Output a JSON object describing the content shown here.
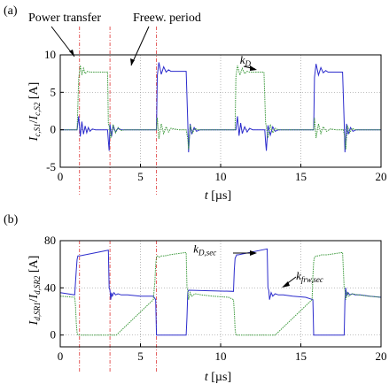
{
  "figure": {
    "annotations": {
      "power_transfer": "Power transfer",
      "freewheel_period": "Freew. period"
    }
  },
  "chart_data": [
    {
      "type": "line",
      "panel_label": "(a)",
      "xlabel": "t [µs]",
      "ylabel": "I_c,S1 / I_c,S2 [A]",
      "xlim": [
        0,
        20
      ],
      "ylim": [
        -5,
        10
      ],
      "x_ticks": [
        "0",
        "5",
        "10",
        "15",
        "20"
      ],
      "y_ticks": [
        "-5",
        "0",
        "5",
        "10"
      ],
      "grid": true,
      "mark_labels": [
        {
          "text": "k",
          "sub": "D",
          "x": 11.2,
          "y": 8.8
        }
      ],
      "vlines": [
        1.2,
        3.1,
        6.0
      ],
      "series": [
        {
          "color": "#2b2bcc",
          "x": [
            0,
            1.05,
            1.15,
            1.25,
            1.35,
            1.45,
            1.55,
            1.65,
            1.75,
            1.85,
            2.0,
            2.2,
            2.4,
            2.6,
            2.8,
            2.95,
            3.0,
            3.05,
            3.1,
            3.2,
            3.3,
            3.45,
            3.6,
            3.8,
            4.0,
            5.9,
            6.0,
            6.05,
            6.15,
            6.3,
            6.45,
            6.6,
            6.75,
            6.9,
            7.05,
            7.3,
            7.6,
            7.85,
            7.95,
            8.0,
            8.1,
            8.2,
            8.35,
            8.5,
            8.7,
            10.8,
            10.95,
            11.05,
            11.15,
            11.25,
            11.35,
            11.5,
            11.65,
            11.8,
            12.0,
            12.3,
            12.6,
            12.75,
            12.8,
            12.85,
            12.95,
            13.1,
            13.25,
            13.4,
            13.6,
            15.7,
            15.8,
            15.85,
            15.95,
            16.1,
            16.25,
            16.4,
            16.55,
            16.7,
            16.85,
            17.1,
            17.4,
            17.6,
            17.7,
            17.75,
            17.85,
            17.95,
            18.1,
            18.25,
            18.45,
            20
          ],
          "values": [
            0,
            0,
            1.8,
            -0.9,
            1.1,
            -0.6,
            0.5,
            -0.4,
            0.3,
            -0.2,
            0.1,
            0,
            0,
            0,
            0,
            0,
            -1.5,
            -2.8,
            0.7,
            -0.9,
            0.5,
            -0.3,
            0.2,
            0,
            0,
            0,
            0,
            7.2,
            9.0,
            7.4,
            8.4,
            7.7,
            8.0,
            7.8,
            7.8,
            7.8,
            7.8,
            7.8,
            1.0,
            -3.0,
            0.8,
            -0.6,
            0.3,
            -0.2,
            0,
            0,
            0,
            1.8,
            -0.8,
            0.9,
            -0.5,
            0.4,
            -0.3,
            0.2,
            0,
            0,
            0,
            0,
            -1.6,
            -2.8,
            0.6,
            -0.7,
            0.4,
            -0.2,
            0,
            0,
            0,
            7.0,
            8.8,
            7.3,
            8.3,
            7.6,
            7.9,
            7.7,
            7.7,
            7.7,
            7.7,
            7.7,
            1.0,
            -3.0,
            0.8,
            -0.6,
            0.3,
            -0.2,
            0,
            0
          ]
        },
        {
          "color": "#3d9a3d",
          "x": [
            0,
            1.05,
            1.15,
            1.25,
            1.35,
            1.45,
            1.55,
            1.7,
            1.85,
            2.0,
            2.2,
            2.5,
            2.8,
            2.95,
            3.0,
            3.05,
            3.15,
            3.3,
            3.45,
            3.6,
            3.8,
            4.0,
            5.9,
            6.0,
            6.05,
            6.15,
            6.3,
            6.45,
            6.6,
            6.75,
            6.9,
            7.1,
            7.4,
            7.85,
            7.95,
            8.0,
            8.1,
            8.25,
            8.4,
            8.6,
            10.8,
            10.9,
            10.95,
            11.05,
            11.2,
            11.35,
            11.5,
            11.65,
            11.8,
            12.0,
            12.3,
            12.7,
            12.8,
            12.85,
            12.95,
            13.1,
            13.25,
            13.4,
            13.6,
            15.7,
            15.8,
            15.85,
            15.95,
            16.1,
            16.25,
            16.4,
            16.6,
            16.85,
            17.2,
            17.65,
            17.75,
            17.8,
            17.9,
            18.05,
            18.2,
            18.4,
            20
          ],
          "values": [
            0,
            0,
            6.8,
            8.6,
            7.3,
            8.2,
            7.5,
            7.8,
            7.7,
            7.7,
            7.7,
            7.7,
            7.7,
            7.7,
            0.8,
            0.5,
            -1.1,
            0.7,
            -0.4,
            0.3,
            -0.1,
            0,
            0,
            0,
            1.6,
            -1.2,
            0.8,
            -0.5,
            0.4,
            -0.3,
            0.2,
            0.1,
            0,
            0,
            -1.2,
            -2.6,
            0.6,
            -0.4,
            0.2,
            0,
            0,
            0,
            7.0,
            8.6,
            7.3,
            8.2,
            7.5,
            7.8,
            7.7,
            7.7,
            7.7,
            7.7,
            1.0,
            0.4,
            -1.1,
            0.7,
            -0.4,
            0.2,
            0,
            0,
            0,
            1.6,
            -1.1,
            0.8,
            -0.5,
            0.4,
            -0.2,
            0.1,
            0,
            0,
            -1.2,
            -2.6,
            0.6,
            -0.4,
            0.2,
            0,
            0
          ]
        }
      ]
    },
    {
      "type": "line",
      "panel_label": "(b)",
      "xlabel": "t [µs]",
      "ylabel": "I_d,SR1 / I_d,SR2 [A]",
      "xlim": [
        0,
        20
      ],
      "ylim": [
        -10,
        80
      ],
      "x_ticks": [
        "0",
        "5",
        "10",
        "15",
        "20"
      ],
      "y_ticks": [
        "0",
        "40",
        "80"
      ],
      "grid": true,
      "mark_labels": [
        {
          "text": "k",
          "sub": "D,sec",
          "x": 8.3,
          "y": 70
        },
        {
          "text": "k",
          "sub": "frw,sec",
          "x": 14.7,
          "y": 47
        }
      ],
      "vlines": [
        1.2,
        3.1,
        6.0
      ],
      "series": [
        {
          "color": "#2b2bcc",
          "x": [
            0,
            0.9,
            1.0,
            1.05,
            1.1,
            1.2,
            3.0,
            3.05,
            3.1,
            3.15,
            3.2,
            3.25,
            3.35,
            3.45,
            3.6,
            3.8,
            4.2,
            5.0,
            5.8,
            5.95,
            6.0,
            6.05,
            6.15,
            6.25,
            6.35,
            6.5,
            6.7,
            7.0,
            7.6,
            7.85,
            7.9,
            7.95,
            8.0,
            10.8,
            10.85,
            10.9,
            11.0,
            11.1,
            12.9,
            12.95,
            13.0,
            13.05,
            13.15,
            13.25,
            13.4,
            13.6,
            13.9,
            14.5,
            15.3,
            15.75,
            15.8,
            15.85,
            15.9,
            16.0,
            16.1,
            16.25,
            16.4,
            16.6,
            16.9,
            17.5,
            17.7,
            17.75,
            17.8,
            17.85,
            17.95,
            18.05,
            18.2,
            18.4,
            18.7,
            19.3,
            20
          ],
          "values": [
            36,
            34,
            55,
            64,
            67,
            67,
            72,
            40,
            38,
            30,
            36,
            33,
            36,
            34,
            35,
            34,
            34,
            33,
            33,
            30,
            0,
            0,
            0,
            0,
            0,
            0,
            0,
            0,
            0,
            0,
            15,
            36,
            38,
            37,
            55,
            65,
            68,
            68,
            73,
            40,
            38,
            30,
            36,
            33,
            35,
            34,
            34,
            33,
            32,
            30,
            0,
            0,
            0,
            0,
            0,
            0,
            0,
            0,
            0,
            0,
            0,
            30,
            40,
            33,
            36,
            34,
            35,
            34,
            34,
            33,
            32
          ]
        },
        {
          "color": "#3d9a3d",
          "x": [
            0,
            0.9,
            0.95,
            1.0,
            1.05,
            1.1,
            1.2,
            1.4,
            1.8,
            2.5,
            3.0,
            3.05,
            3.1,
            3.2,
            3.5,
            5.8,
            5.9,
            5.95,
            6.0,
            6.05,
            6.15,
            6.3,
            6.5,
            6.8,
            7.3,
            7.85,
            7.9,
            7.95,
            8.0,
            8.1,
            8.2,
            8.4,
            8.8,
            9.5,
            10.5,
            10.8,
            10.85,
            10.9,
            10.95,
            11.0,
            11.1,
            11.3,
            11.6,
            12.2,
            12.9,
            12.95,
            13.0,
            13.1,
            13.4,
            15.7,
            15.75,
            15.8,
            15.85,
            15.95,
            16.1,
            16.3,
            16.6,
            17.1,
            17.6,
            17.7,
            17.75,
            17.8,
            17.9,
            18.0,
            18.2,
            18.6,
            19.2,
            20
          ],
          "values": [
            33,
            32,
            25,
            10,
            2,
            0,
            0,
            0,
            0,
            0,
            0,
            0,
            0,
            0,
            0,
            30,
            45,
            60,
            66,
            67,
            66,
            67,
            67,
            68,
            69,
            70,
            40,
            38,
            30,
            36,
            33,
            35,
            34,
            33,
            32,
            30,
            20,
            5,
            0,
            0,
            0,
            0,
            0,
            0,
            0,
            0,
            0,
            0,
            0,
            30,
            50,
            62,
            66,
            67,
            67,
            68,
            68,
            69,
            70,
            40,
            38,
            30,
            36,
            33,
            35,
            34,
            33,
            32
          ]
        }
      ]
    }
  ]
}
